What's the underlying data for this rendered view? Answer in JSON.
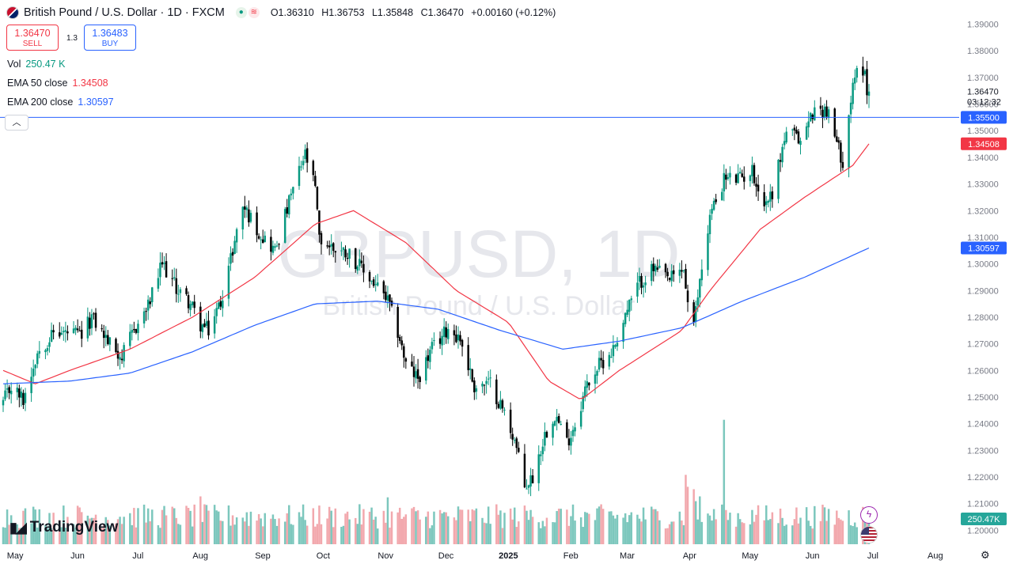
{
  "header": {
    "symbol_title": "British Pound / U.S. Dollar · 1D · FXCM",
    "open": "O1.36310",
    "high": "H1.36753",
    "low": "L1.35848",
    "close": "C1.36470",
    "change": "+0.00160 (+0.12%)"
  },
  "trade": {
    "sell_price": "1.36470",
    "sell_label": "SELL",
    "spread": "1.3",
    "buy_price": "1.36483",
    "buy_label": "BUY"
  },
  "indicators": {
    "vol_label": "Vol",
    "vol_value": "250.47 K",
    "ema50_label": "EMA 50 close",
    "ema50_value": "1.34508",
    "ema200_label": "EMA 200 close",
    "ema200_value": "1.30597"
  },
  "collapse_icon": "chevron-up-icon",
  "watermark": {
    "symbol": "GBPUSD, 1D",
    "name": "British Pound / U.S. Dollar"
  },
  "brand": "TradingView",
  "colors": {
    "up": "#089981",
    "down": "#000000",
    "ema50": "#f23645",
    "ema200": "#2962ff",
    "vol_up": "#7cc7bd",
    "vol_down": "#f2a8ad",
    "hline": "#2962ff"
  },
  "chart_data": {
    "type": "candlestick",
    "title": "British Pound / U.S. Dollar",
    "timeframe": "1D",
    "price_axis_ticks": [
      "1.39000",
      "1.38000",
      "1.37000",
      "1.36000",
      "1.35000",
      "1.34000",
      "1.33000",
      "1.32000",
      "1.31000",
      "1.30000",
      "1.29000",
      "1.28000",
      "1.27000",
      "1.26000",
      "1.25000",
      "1.24000",
      "1.23000",
      "1.22000",
      "1.21000",
      "1.20000"
    ],
    "time_axis_labels": [
      "May",
      "Jun",
      "Jul",
      "Aug",
      "Sep",
      "Oct",
      "Nov",
      "Dec",
      "2025",
      "Feb",
      "Mar",
      "Apr",
      "May",
      "Jun",
      "Jul",
      "Aug"
    ],
    "ylim": [
      1.195,
      1.392
    ],
    "price_labels": {
      "last_price": "1.36470",
      "countdown": "03:12:32",
      "horizontal_line": "1.35500",
      "ema50": "1.34508",
      "ema200": "1.30597",
      "volume": "250.47K"
    },
    "horizontal_line_value": 1.355,
    "close_series": {
      "interval": "daily, late Apr 2024 to early Jul 2025",
      "anchors": [
        [
          "2024-04-29",
          1.248
        ],
        [
          "2024-05-03",
          1.254
        ],
        [
          "2024-05-09",
          1.249
        ],
        [
          "2024-05-16",
          1.267
        ],
        [
          "2024-05-24",
          1.274
        ],
        [
          "2024-05-31",
          1.274
        ],
        [
          "2024-06-07",
          1.273
        ],
        [
          "2024-06-12",
          1.28
        ],
        [
          "2024-06-20",
          1.271
        ],
        [
          "2024-06-27",
          1.265
        ],
        [
          "2024-07-03",
          1.275
        ],
        [
          "2024-07-10",
          1.284
        ],
        [
          "2024-07-17",
          1.3
        ],
        [
          "2024-07-24",
          1.291
        ],
        [
          "2024-07-31",
          1.285
        ],
        [
          "2024-08-05",
          1.277
        ],
        [
          "2024-08-09",
          1.275
        ],
        [
          "2024-08-15",
          1.286
        ],
        [
          "2024-08-20",
          1.302
        ],
        [
          "2024-08-26",
          1.322
        ],
        [
          "2024-09-03",
          1.312
        ],
        [
          "2024-09-11",
          1.305
        ],
        [
          "2024-09-16",
          1.318
        ],
        [
          "2024-09-20",
          1.328
        ],
        [
          "2024-09-26",
          1.341
        ],
        [
          "2024-10-01",
          1.328
        ],
        [
          "2024-10-03",
          1.309
        ],
        [
          "2024-10-10",
          1.306
        ],
        [
          "2024-10-18",
          1.304
        ],
        [
          "2024-10-24",
          1.298
        ],
        [
          "2024-10-31",
          1.292
        ],
        [
          "2024-11-06",
          1.286
        ],
        [
          "2024-11-12",
          1.272
        ],
        [
          "2024-11-15",
          1.262
        ],
        [
          "2024-11-21",
          1.257
        ],
        [
          "2024-11-28",
          1.268
        ],
        [
          "2024-12-06",
          1.276
        ],
        [
          "2024-12-12",
          1.272
        ],
        [
          "2024-12-19",
          1.254
        ],
        [
          "2024-12-27",
          1.255
        ],
        [
          "2025-01-03",
          1.244
        ],
        [
          "2025-01-08",
          1.234
        ],
        [
          "2025-01-13",
          1.216
        ],
        [
          "2025-01-17",
          1.22
        ],
        [
          "2025-01-23",
          1.236
        ],
        [
          "2025-01-28",
          1.244
        ],
        [
          "2025-02-03",
          1.233
        ],
        [
          "2025-02-07",
          1.24
        ],
        [
          "2025-02-13",
          1.255
        ],
        [
          "2025-02-19",
          1.262
        ],
        [
          "2025-02-26",
          1.268
        ],
        [
          "2025-03-04",
          1.281
        ],
        [
          "2025-03-11",
          1.293
        ],
        [
          "2025-03-18",
          1.298
        ],
        [
          "2025-03-26",
          1.294
        ],
        [
          "2025-04-02",
          1.298
        ],
        [
          "2025-04-04",
          1.285
        ],
        [
          "2025-04-07",
          1.276
        ],
        [
          "2025-04-10",
          1.294
        ],
        [
          "2025-04-15",
          1.318
        ],
        [
          "2025-04-22",
          1.332
        ],
        [
          "2025-04-30",
          1.332
        ],
        [
          "2025-05-06",
          1.335
        ],
        [
          "2025-05-12",
          1.322
        ],
        [
          "2025-05-16",
          1.327
        ],
        [
          "2025-05-23",
          1.35
        ],
        [
          "2025-05-30",
          1.346
        ],
        [
          "2025-06-05",
          1.357
        ],
        [
          "2025-06-12",
          1.358
        ],
        [
          "2025-06-18",
          1.343
        ],
        [
          "2025-06-20",
          1.339
        ],
        [
          "2025-06-24",
          1.362
        ],
        [
          "2025-06-27",
          1.372
        ],
        [
          "2025-07-01",
          1.374
        ],
        [
          "2025-07-02",
          1.363
        ],
        [
          "2025-07-03",
          1.3647
        ]
      ]
    },
    "ema50": [
      [
        "2024-04-29",
        1.26
      ],
      [
        "2024-05-15",
        1.255
      ],
      [
        "2024-06-01",
        1.26
      ],
      [
        "2024-07-01",
        1.268
      ],
      [
        "2024-08-01",
        1.28
      ],
      [
        "2024-09-01",
        1.295
      ],
      [
        "2024-10-01",
        1.315
      ],
      [
        "2024-10-20",
        1.32
      ],
      [
        "2024-11-15",
        1.308
      ],
      [
        "2024-12-10",
        1.29
      ],
      [
        "2025-01-05",
        1.278
      ],
      [
        "2025-01-25",
        1.256
      ],
      [
        "2025-02-10",
        1.249
      ],
      [
        "2025-03-01",
        1.26
      ],
      [
        "2025-04-01",
        1.275
      ],
      [
        "2025-04-15",
        1.29
      ],
      [
        "2025-05-10",
        1.313
      ],
      [
        "2025-06-01",
        1.325
      ],
      [
        "2025-06-25",
        1.337
      ],
      [
        "2025-07-03",
        1.34508
      ]
    ],
    "ema200": [
      [
        "2024-04-29",
        1.255
      ],
      [
        "2024-06-01",
        1.256
      ],
      [
        "2024-07-01",
        1.259
      ],
      [
        "2024-08-01",
        1.267
      ],
      [
        "2024-09-01",
        1.277
      ],
      [
        "2024-10-01",
        1.285
      ],
      [
        "2024-11-01",
        1.286
      ],
      [
        "2024-12-01",
        1.283
      ],
      [
        "2025-01-01",
        1.275
      ],
      [
        "2025-02-01",
        1.268
      ],
      [
        "2025-03-01",
        1.271
      ],
      [
        "2025-04-01",
        1.276
      ],
      [
        "2025-05-01",
        1.286
      ],
      [
        "2025-06-01",
        1.295
      ],
      [
        "2025-07-03",
        1.30597
      ]
    ],
    "volume_spikes": [
      [
        "2024-08-05",
        1.0
      ],
      [
        "2024-11-06",
        0.98
      ],
      [
        "2025-04-03",
        1.45
      ],
      [
        "2025-04-04",
        1.2
      ],
      [
        "2025-04-07",
        1.15
      ],
      [
        "2025-04-08",
        0.9
      ],
      [
        "2025-04-10",
        1.0
      ],
      [
        "2025-04-22",
        2.6
      ],
      [
        "2025-06-30",
        0.78
      ]
    ]
  }
}
